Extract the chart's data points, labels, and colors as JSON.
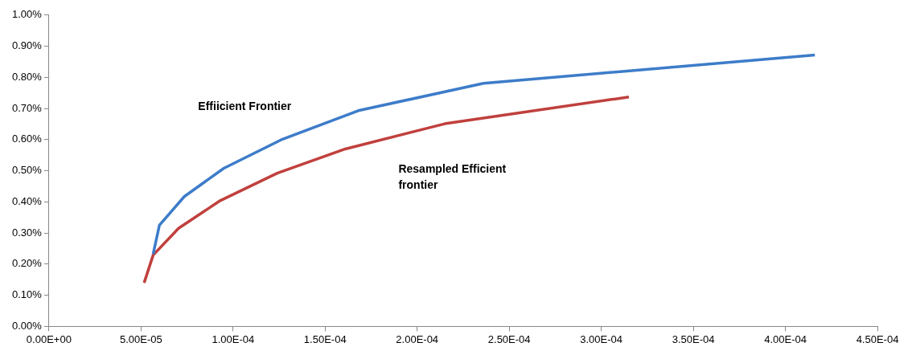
{
  "chart_data": {
    "type": "line",
    "grid": false,
    "legend": false,
    "marker": "none",
    "xlim": [
      0,
      0.00045
    ],
    "xticks": [
      {
        "value": 0,
        "label": "0.00E+00"
      },
      {
        "value": 5e-05,
        "label": "5.00E-05"
      },
      {
        "value": 0.0001,
        "label": "1.00E-04"
      },
      {
        "value": 0.00015,
        "label": "1.50E-04"
      },
      {
        "value": 0.0002,
        "label": "2.00E-04"
      },
      {
        "value": 0.00025,
        "label": "2.50E-04"
      },
      {
        "value": 0.0003,
        "label": "3.00E-04"
      },
      {
        "value": 0.00035,
        "label": "3.50E-04"
      },
      {
        "value": 0.0004,
        "label": "4.00E-04"
      },
      {
        "value": 0.00045,
        "label": "4.50E-04"
      }
    ],
    "ylim": [
      0,
      1
    ],
    "yticks": [
      {
        "value": 0,
        "label": "0.00%"
      },
      {
        "value": 0.1,
        "label": "0.10%"
      },
      {
        "value": 0.2,
        "label": "0.20%"
      },
      {
        "value": 0.3,
        "label": "0.30%"
      },
      {
        "value": 0.4,
        "label": "0.40%"
      },
      {
        "value": 0.5,
        "label": "0.50%"
      },
      {
        "value": 0.6,
        "label": "0.60%"
      },
      {
        "value": 0.7,
        "label": "0.70%"
      },
      {
        "value": 0.8,
        "label": "0.80%"
      },
      {
        "value": 0.9,
        "label": "0.90%"
      },
      {
        "value": 1,
        "label": "1.00%"
      }
    ],
    "series": [
      {
        "name": "Effiicient Frontier",
        "color": "#3d7cc9",
        "x": [
          5.66e-05,
          6e-05,
          7.35e-05,
          9.5e-05,
          0.000126,
          0.000168,
          0.000236,
          0.000416
        ],
        "values": [
          0.232,
          0.325,
          0.417,
          0.508,
          0.599,
          0.693,
          0.781,
          0.872
        ]
      },
      {
        "name": "Resampled Efficient frontier",
        "color": "#c0403d",
        "x": [
          5.17e-05,
          5.66e-05,
          7.04e-05,
          9.3e-05,
          0.000124,
          0.000161,
          0.000215,
          0.000315
        ],
        "values": [
          0.14,
          0.229,
          0.315,
          0.404,
          0.492,
          0.57,
          0.651,
          0.737
        ]
      }
    ]
  }
}
